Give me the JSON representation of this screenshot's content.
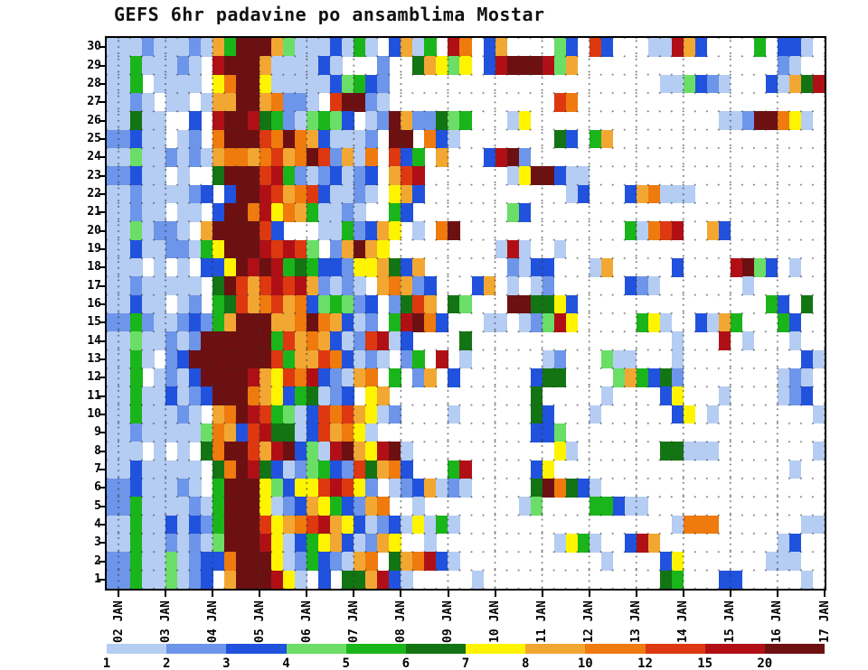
{
  "title": "GEFS 6hr padavine po ansamblima Mostar",
  "chart_data": {
    "type": "heatmap",
    "title": "GEFS 6hr padavine po ansamblima Mostar",
    "x_tick_labels": [
      "02 JAN",
      "03 JAN",
      "04 JAN",
      "05 JAN",
      "06 JAN",
      "07 JAN",
      "08 JAN",
      "09 JAN",
      "10 JAN",
      "11 JAN",
      "12 JAN",
      "13 JAN",
      "14 JAN",
      "15 JAN",
      "16 JAN",
      "17 JAN"
    ],
    "y_tick_labels": [
      30,
      29,
      28,
      27,
      26,
      25,
      24,
      23,
      22,
      21,
      20,
      19,
      18,
      17,
      16,
      15,
      14,
      13,
      12,
      11,
      10,
      9,
      8,
      7,
      6,
      5,
      4,
      3,
      2,
      1
    ],
    "columns_per_day": 4,
    "grid_columns": 61,
    "colorbar": {
      "tick_labels": [
        "1",
        "2",
        "3",
        "4",
        "5",
        "6",
        "7",
        "8",
        "10",
        "12",
        "15",
        "20"
      ],
      "thresholds": [
        1,
        2,
        3,
        4,
        5,
        6,
        7,
        8,
        10,
        12,
        15,
        20
      ],
      "colors": [
        "#b5cdf3",
        "#6d95e9",
        "#2152dd",
        "#6ade66",
        "#1ab51a",
        "#137413",
        "#fef400",
        "#f3a733",
        "#ef7a0e",
        "#dd3810",
        "#b01015",
        "#6d1012"
      ]
    },
    "palette": {
      "a": "#b5cdf3",
      "b": "#6d95e9",
      "c": "#2152dd",
      "d": "#6ade66",
      "e": "#1ab51a",
      "f": "#137413",
      "g": "#fef400",
      "h": "#f3a733",
      "i": "#ef7a0e",
      "j": "#dd3810",
      "k": "#b01015",
      "l": "#6d1012"
    },
    "bin_meaning": {
      ".": "<1",
      "a": "1-2",
      "b": "2-3",
      "c": "3-4",
      "d": "4-5",
      "e": "5-6",
      "f": "6-7",
      "g": "7-8",
      "h": "8-10",
      "i": "10-12",
      "j": "12-15",
      "k": "15-20",
      "l": ">20"
    },
    "rows": [
      {
        "member": 30,
        "cells": "aaabaaabahelllhdaaacaea.chae.ki.ch....dc.jc...aakhc....e.cca."
      },
      {
        "member": 29,
        "cells": "aaeaaaba.klllhaaaaca...b..fhgdg.cklllkdh.................ba."
      },
      {
        "member": 28,
        "cells": "aae.aaaa.gillgaaaaacdecb.......................aadcba...cahfk"
      },
      {
        "member": 27,
        "cells": "aaba.aa.ahhllhibba.jllba..............ji....................."
      },
      {
        "member": 26,
        "cells": "aafaa..c.kllkfebadedc.ablhbbfde...ag................aablliga."
      },
      {
        "member": 25,
        "cells": "bbcaa.ab.illljilihcaaab.ll.ica........fc.eh.................."
      },
      {
        "member": 24,
        "cells": "aadaababahiihijhiljbhai.jce.h...cklb........................."
      },
      {
        "member": 23,
        "cells": "bbcaa.a..fllljkebabcabc.hjk.......agllcaa...................."
      },
      {
        "member": 22,
        "cells": "aabaaaabc.cllkjhijcaaba.ghc............ac...chiaaa..........."
      },
      {
        "member": 21,
        "cells": "aabaa.aa.cllikgiheaaba..ec........dc........................."
      },
      {
        "member": 20,
        "cells": "aadabba.hlllljc...aaebchg.a.il..............eaijk..hc........"
      },
      {
        "member": 19,
        "cells": "aacaabbaeglllkjkjd.bhlhg.........aka..a......................"
      },
      {
        "member": 18,
        "cells": "aaa.a.a.ccglklkefeccbgghfch.......bacc...ah.....c....kldc.a.."
      },
      {
        "member": 17,
        "cells": "aabaaaaa.fljhjkjkhbaba.hihbc...ch.a.ab......cba.......a......"
      },
      {
        "member": 16,
        "cells": "aacaa.ab.efjhijhicdedbc.bfjh.fd...llffgc................ec.f"
      },
      {
        "member": 15,
        "cells": "bbebaabcbehlllhhilihcab.eklic...aa.abdkg.....ega..cahe...ec.."
      },
      {
        "member": 14,
        "cells": "aadaababllllllejhihcabjkac....f.................a...k.a...a.."
      },
      {
        "member": 13,
        "cells": "aaea.bcllllllljehhjicaba.be.k.a......ab...daa...a..........ca"
      },
      {
        "member": 12,
        "cells": "aae.abacllllkhgjikcbahi.e.bh.c......cff....dhecfb........aba."
      },
      {
        "member": 11,
        "cells": "aaeaacabclllihgcefabc.gh............f.....a....cg...a....abc."
      },
      {
        "member": 10,
        "cells": "aaeaaaba.hilkjedacjijhgab....a......fc...a......cg.a........a"
      },
      {
        "member": 9,
        "cells": "aabaaaaadihcjkffacjhiga.............ccd......................"
      },
      {
        "member": 8,
        "cells": "aaa.a.a.filljhklcdaklhgkla............ga.......ffaaa........a"
      },
      {
        "member": 7,
        "cells": "aacaaaaa.filkfcabdecbjfhic...ek.....cg....................a.."
      },
      {
        "member": 6,
        "cells": "bbcaaaba.elllgdcggjkjgb.abchaba.....flifca..................."
      },
      {
        "member": 5,
        "cells": "bbeaaaabaelllgabchgecbhi..a........ad....eecaa..............."
      },
      {
        "member": 4,
        "cells": "aaeaacacbellljghijkhgcabcagaea..................aiii.......aa"
      },
      {
        "member": 3,
        "cells": "aaeaababadlllkgaceghcabhg..a..........agea..ckh..........ac.."
      },
      {
        "member": 2,
        "cells": "bbeaadabccilllgabecbahi.fhikca............a....cg.......aaa."
      },
      {
        "member": 1,
        "cells": "bbeaadabc.hlllkga.c.ffhkca.....a...............fe...cc.....a."
      }
    ]
  }
}
